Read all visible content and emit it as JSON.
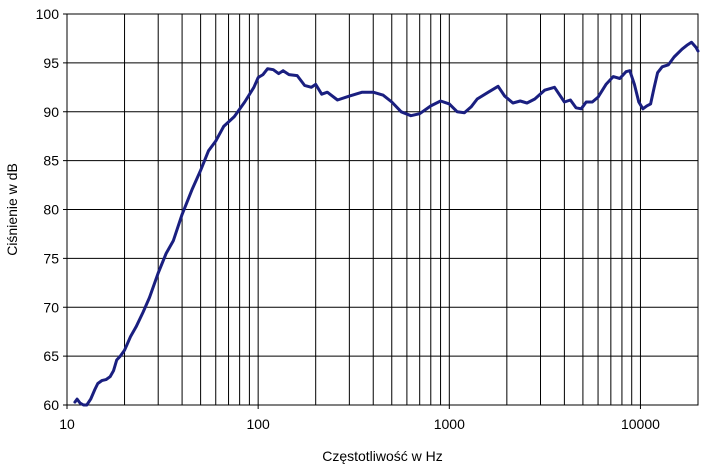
{
  "chart_data": {
    "type": "line",
    "title": "",
    "xlabel": "Częstotliwość w Hz",
    "ylabel": "Ciśnienie w dB",
    "x_scale": "log",
    "xlim": [
      10,
      20000
    ],
    "ylim": [
      60,
      100
    ],
    "x_ticks": [
      10,
      100,
      1000,
      10000
    ],
    "x_tick_labels": [
      "10",
      "100",
      "1000",
      "10000"
    ],
    "y_ticks": [
      60,
      65,
      70,
      75,
      80,
      85,
      90,
      95,
      100
    ],
    "y_tick_labels": [
      "60",
      "65",
      "70",
      "75",
      "80",
      "85",
      "90",
      "95",
      "100"
    ],
    "grid": {
      "x_major": true,
      "x_minor": true,
      "y_major": true
    },
    "legend": "none",
    "series": [
      {
        "color": "#1a1f80",
        "points": [
          [
            11.0,
            60.3
          ],
          [
            11.3,
            60.6
          ],
          [
            11.7,
            60.2
          ],
          [
            12.2,
            59.5
          ],
          [
            12.7,
            60.0
          ],
          [
            13.3,
            60.6
          ],
          [
            14.0,
            61.6
          ],
          [
            14.5,
            62.2
          ],
          [
            15.2,
            62.5
          ],
          [
            16.0,
            62.6
          ],
          [
            16.8,
            62.9
          ],
          [
            17.5,
            63.5
          ],
          [
            18.2,
            64.6
          ],
          [
            19.0,
            65.0
          ],
          [
            20.0,
            65.6
          ],
          [
            21.5,
            67.0
          ],
          [
            23.0,
            68.0
          ],
          [
            25.0,
            69.5
          ],
          [
            27.0,
            71.0
          ],
          [
            30.0,
            73.5
          ],
          [
            33.0,
            75.5
          ],
          [
            36.0,
            76.8
          ],
          [
            40.0,
            79.5
          ],
          [
            45.0,
            82.0
          ],
          [
            50.0,
            84.0
          ],
          [
            55.0,
            86.0
          ],
          [
            60.0,
            87.0
          ],
          [
            66.0,
            88.5
          ],
          [
            75.0,
            89.5
          ],
          [
            85.0,
            91.0
          ],
          [
            95.0,
            92.5
          ],
          [
            100.0,
            93.5
          ],
          [
            106.0,
            93.8
          ],
          [
            112.0,
            94.4
          ],
          [
            120.0,
            94.3
          ],
          [
            128.0,
            93.9
          ],
          [
            135.0,
            94.2
          ],
          [
            145.0,
            93.8
          ],
          [
            160.0,
            93.7
          ],
          [
            175.0,
            92.7
          ],
          [
            190.0,
            92.5
          ],
          [
            200.0,
            92.8
          ],
          [
            215.0,
            91.8
          ],
          [
            230.0,
            92.0
          ],
          [
            260.0,
            91.2
          ],
          [
            300.0,
            91.6
          ],
          [
            350.0,
            92.0
          ],
          [
            400.0,
            92.0
          ],
          [
            450.0,
            91.7
          ],
          [
            500.0,
            91.0
          ],
          [
            560.0,
            90.0
          ],
          [
            630.0,
            89.6
          ],
          [
            700.0,
            89.8
          ],
          [
            800.0,
            90.6
          ],
          [
            900.0,
            91.1
          ],
          [
            1000.0,
            90.8
          ],
          [
            1100.0,
            90.0
          ],
          [
            1200.0,
            89.9
          ],
          [
            1300.0,
            90.5
          ],
          [
            1400.0,
            91.3
          ],
          [
            1600.0,
            92.0
          ],
          [
            1800.0,
            92.6
          ],
          [
            1950.0,
            91.6
          ],
          [
            2150.0,
            90.9
          ],
          [
            2350.0,
            91.1
          ],
          [
            2550.0,
            90.9
          ],
          [
            2800.0,
            91.3
          ],
          [
            3150.0,
            92.2
          ],
          [
            3550.0,
            92.5
          ],
          [
            4000.0,
            91.0
          ],
          [
            4300.0,
            91.2
          ],
          [
            4600.0,
            90.4
          ],
          [
            4900.0,
            90.3
          ],
          [
            5200.0,
            91.0
          ],
          [
            5600.0,
            91.0
          ],
          [
            6000.0,
            91.5
          ],
          [
            6600.0,
            92.8
          ],
          [
            7200.0,
            93.6
          ],
          [
            7800.0,
            93.4
          ],
          [
            8400.0,
            94.1
          ],
          [
            8800.0,
            94.2
          ],
          [
            9300.0,
            92.8
          ],
          [
            9800.0,
            91.0
          ],
          [
            10300.0,
            90.3
          ],
          [
            10800.0,
            90.6
          ],
          [
            11300.0,
            90.8
          ],
          [
            11800.0,
            92.5
          ],
          [
            12300.0,
            94.0
          ],
          [
            13000.0,
            94.6
          ],
          [
            14000.0,
            94.8
          ],
          [
            15000.0,
            95.6
          ],
          [
            16500.0,
            96.4
          ],
          [
            17500.0,
            96.8
          ],
          [
            18500.0,
            97.1
          ],
          [
            19500.0,
            96.6
          ],
          [
            20000.0,
            96.2
          ]
        ]
      }
    ]
  }
}
